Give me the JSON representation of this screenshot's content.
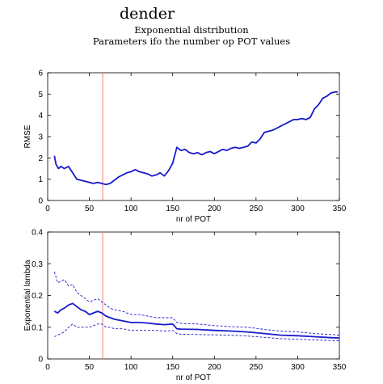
{
  "figure": {
    "title": "dender",
    "subtitle1": "Exponential distribution",
    "subtitle2": "Parameters ifo the number op POT values"
  },
  "chart_data": [
    {
      "type": "line",
      "xlabel": "nr of POT",
      "ylabel": "RMSE",
      "xlim": [
        0,
        350
      ],
      "ylim": [
        0,
        6
      ],
      "xticks": [
        0,
        50,
        100,
        150,
        200,
        250,
        300,
        350
      ],
      "yticks": [
        0,
        1,
        2,
        3,
        4,
        5,
        6
      ],
      "grid": false,
      "colors": {
        "series": "#1a1acc",
        "marker": "#f08080"
      },
      "vline_x": 66,
      "series": [
        {
          "x": [
            8,
            10,
            13,
            16,
            20,
            25,
            30,
            35,
            40,
            45,
            50,
            55,
            60,
            65,
            70,
            75,
            80,
            85,
            90,
            95,
            100,
            105,
            110,
            115,
            120,
            125,
            130,
            135,
            140,
            145,
            150,
            155,
            160,
            165,
            170,
            175,
            180,
            185,
            190,
            195,
            200,
            205,
            210,
            215,
            220,
            225,
            230,
            235,
            240,
            245,
            250,
            255,
            260,
            265,
            270,
            275,
            280,
            285,
            290,
            295,
            300,
            305,
            310,
            315,
            320,
            325,
            330,
            335,
            340,
            345,
            348
          ],
          "y": [
            2.1,
            1.7,
            1.5,
            1.6,
            1.5,
            1.6,
            1.3,
            1.0,
            0.95,
            0.9,
            0.85,
            0.8,
            0.85,
            0.8,
            0.75,
            0.8,
            0.95,
            1.1,
            1.2,
            1.3,
            1.35,
            1.45,
            1.35,
            1.3,
            1.25,
            1.15,
            1.2,
            1.3,
            1.15,
            1.4,
            1.75,
            2.5,
            2.35,
            2.4,
            2.25,
            2.2,
            2.25,
            2.15,
            2.25,
            2.3,
            2.2,
            2.3,
            2.4,
            2.35,
            2.45,
            2.5,
            2.45,
            2.5,
            2.55,
            2.75,
            2.7,
            2.9,
            3.2,
            3.25,
            3.3,
            3.4,
            3.5,
            3.6,
            3.7,
            3.8,
            3.8,
            3.85,
            3.8,
            3.9,
            4.3,
            4.5,
            4.8,
            4.9,
            5.05,
            5.1,
            5.1
          ]
        }
      ]
    },
    {
      "type": "line",
      "xlabel": "nr of POT",
      "ylabel": "Exponential lambda",
      "xlim": [
        0,
        350
      ],
      "ylim": [
        0,
        0.4
      ],
      "xticks": [
        0,
        50,
        100,
        150,
        200,
        250,
        300,
        350
      ],
      "yticks": [
        0,
        0.1,
        0.2,
        0.3,
        0.4
      ],
      "ytick_labels": [
        "0",
        "0.1",
        "0.2",
        "0.3",
        "0.4"
      ],
      "grid": false,
      "colors": {
        "series": "#1a1acc",
        "marker": "#f08080"
      },
      "vline_x": 66,
      "series": [
        {
          "x": [
            8,
            12,
            16,
            20,
            25,
            30,
            35,
            40,
            45,
            50,
            55,
            60,
            65,
            70,
            75,
            80,
            90,
            100,
            110,
            120,
            130,
            140,
            150,
            155,
            160,
            180,
            200,
            220,
            240,
            260,
            280,
            300,
            320,
            340,
            350
          ],
          "y": [
            0.15,
            0.145,
            0.155,
            0.16,
            0.17,
            0.175,
            0.165,
            0.155,
            0.15,
            0.14,
            0.145,
            0.15,
            0.145,
            0.135,
            0.13,
            0.125,
            0.12,
            0.115,
            0.115,
            0.113,
            0.11,
            0.108,
            0.11,
            0.095,
            0.094,
            0.093,
            0.09,
            0.088,
            0.085,
            0.08,
            0.075,
            0.073,
            0.07,
            0.067,
            0.066
          ]
        },
        {
          "style": "dashed",
          "x": [
            8,
            12,
            16,
            20,
            25,
            30,
            35,
            40,
            45,
            50,
            55,
            60,
            65,
            70,
            75,
            80,
            90,
            100,
            110,
            120,
            130,
            140,
            150,
            155,
            160,
            180,
            200,
            220,
            240,
            260,
            280,
            300,
            320,
            340,
            350
          ],
          "y": [
            0.275,
            0.24,
            0.245,
            0.25,
            0.23,
            0.235,
            0.21,
            0.2,
            0.19,
            0.18,
            0.185,
            0.19,
            0.18,
            0.17,
            0.16,
            0.155,
            0.15,
            0.14,
            0.14,
            0.135,
            0.13,
            0.13,
            0.13,
            0.115,
            0.112,
            0.11,
            0.105,
            0.102,
            0.1,
            0.093,
            0.088,
            0.085,
            0.08,
            0.077,
            0.075
          ]
        },
        {
          "style": "dashed",
          "x": [
            8,
            12,
            16,
            20,
            25,
            30,
            35,
            40,
            45,
            50,
            55,
            60,
            65,
            70,
            75,
            80,
            90,
            100,
            110,
            120,
            130,
            140,
            150,
            155,
            160,
            180,
            200,
            220,
            240,
            260,
            280,
            300,
            320,
            340,
            350
          ],
          "y": [
            0.07,
            0.075,
            0.08,
            0.085,
            0.1,
            0.11,
            0.1,
            0.1,
            0.1,
            0.1,
            0.105,
            0.11,
            0.11,
            0.1,
            0.1,
            0.095,
            0.095,
            0.09,
            0.09,
            0.09,
            0.09,
            0.088,
            0.09,
            0.08,
            0.078,
            0.077,
            0.076,
            0.075,
            0.072,
            0.068,
            0.064,
            0.062,
            0.06,
            0.058,
            0.057
          ]
        }
      ]
    }
  ]
}
